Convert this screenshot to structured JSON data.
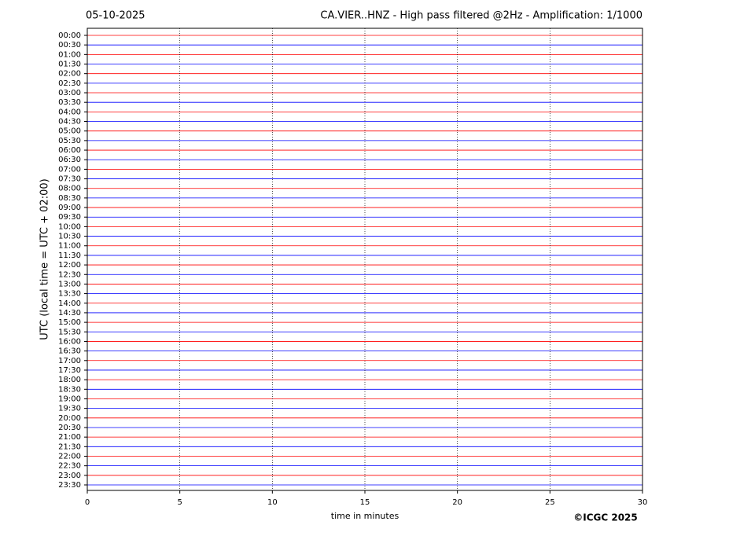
{
  "chart_data": {
    "type": "helicorder",
    "date": "05-10-2025",
    "title": "CA.VIER..HNZ - High pass filtered @2Hz - Amplification: 1/1000",
    "ylabel": "UTC (local time = UTC + 02:00)",
    "xlabel": "time in minutes",
    "credit": "©ICGC 2025",
    "categories": [
      "00:00",
      "00:30",
      "01:00",
      "01:30",
      "02:00",
      "02:30",
      "03:00",
      "03:30",
      "04:00",
      "04:30",
      "05:00",
      "05:30",
      "06:00",
      "06:30",
      "07:00",
      "07:30",
      "08:00",
      "08:30",
      "09:00",
      "09:30",
      "10:00",
      "10:30",
      "11:00",
      "11:30",
      "12:00",
      "12:30",
      "13:00",
      "13:30",
      "14:00",
      "14:30",
      "15:00",
      "15:30",
      "16:00",
      "16:30",
      "17:00",
      "17:30",
      "18:00",
      "18:30",
      "19:00",
      "19:30",
      "20:00",
      "20:30",
      "21:00",
      "21:30",
      "22:00",
      "22:30",
      "23:00",
      "23:30"
    ],
    "trace_colors": [
      "#ff0000",
      "#0000ff"
    ],
    "xlim": [
      0,
      30
    ],
    "xticks": [
      0,
      5,
      10,
      15,
      20,
      25,
      30
    ],
    "grid": true
  }
}
